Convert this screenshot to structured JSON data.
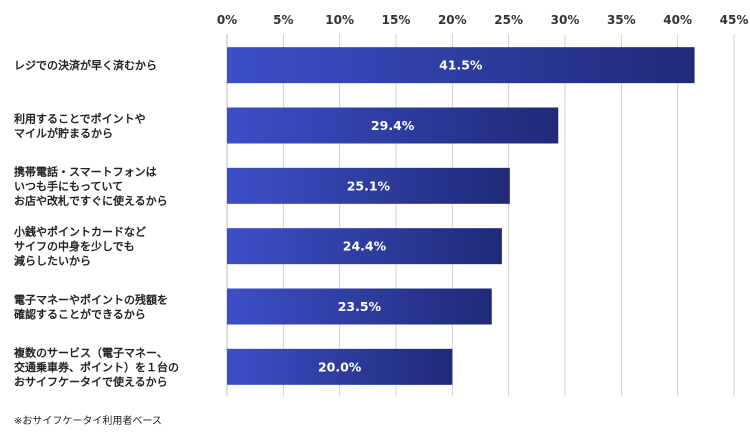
{
  "chart_data": {
    "type": "bar",
    "orientation": "horizontal",
    "categories": [
      "レジでの決済が早く済むから",
      "利用することでポイントや\nマイルが貯まるから",
      "携帯電話・スマートフォンは\nいつも手にもっていて\nお店や改札ですぐに使えるから",
      "小銭やポイントカードなど\nサイフの中身を少しでも\n減らしたいから",
      "電子マネーやポイントの残額を\n確認することができるから",
      "複数のサービス（電子マネー、\n交通乗車券、ポイント）を１台の\nおサイフケータイで使えるから"
    ],
    "values": [
      41.5,
      29.4,
      25.1,
      24.4,
      23.5,
      20.0
    ],
    "value_labels": [
      "41.5%",
      "29.4%",
      "25.1%",
      "24.4%",
      "23.5%",
      "20.0%"
    ],
    "xlim": [
      0,
      45
    ],
    "xticks": [
      "0%",
      "5%",
      "10%",
      "15%",
      "20%",
      "25%",
      "30%",
      "35%",
      "40%",
      "45%"
    ],
    "axis_position": "top",
    "grid": true,
    "bar_color_start": "#3d4fc8",
    "bar_color_end": "#1f2a78",
    "grid_color": "#c8c8c8"
  },
  "footnote": "※おサイフケータイ利用者ベース"
}
